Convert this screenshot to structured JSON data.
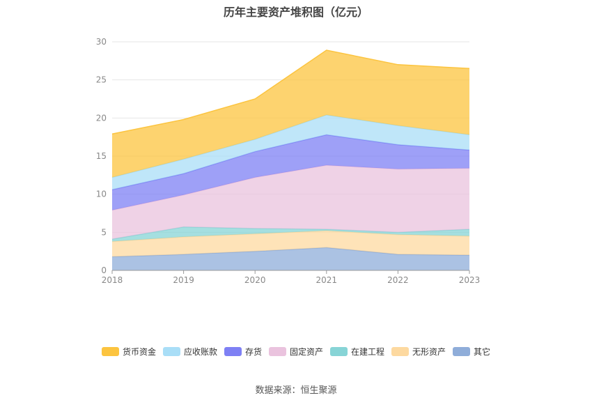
{
  "chart_data": {
    "type": "area",
    "stacked": true,
    "title": "历年主要资产堆积图（亿元）",
    "x": [
      "2018",
      "2019",
      "2020",
      "2021",
      "2022",
      "2023"
    ],
    "ylim": [
      0,
      30
    ],
    "yticks": [
      "0",
      "5",
      "10",
      "15",
      "20",
      "25",
      "30"
    ],
    "grid": true,
    "legend_position": "bottom",
    "series": [
      {
        "name": "其它",
        "color": "#8fadd9",
        "values": [
          1.8,
          2.1,
          2.5,
          3.0,
          2.1,
          2.0
        ]
      },
      {
        "name": "无形资产",
        "color": "#fdd9a0",
        "values": [
          2.0,
          2.3,
          2.3,
          2.2,
          2.6,
          2.5
        ]
      },
      {
        "name": "在建工程",
        "color": "#87d4d6",
        "values": [
          0.3,
          1.3,
          0.7,
          0.2,
          0.3,
          0.9
        ]
      },
      {
        "name": "固定资产",
        "color": "#eac3de",
        "values": [
          3.8,
          4.2,
          6.7,
          8.4,
          8.3,
          8.0
        ]
      },
      {
        "name": "存货",
        "color": "#7e80f4",
        "values": [
          2.7,
          2.8,
          3.4,
          4.0,
          3.2,
          2.4
        ]
      },
      {
        "name": "应收账款",
        "color": "#a9def7",
        "values": [
          1.6,
          1.9,
          1.6,
          2.6,
          2.5,
          2.0
        ]
      },
      {
        "name": "货币资金",
        "color": "#fcc43f",
        "values": [
          5.7,
          5.2,
          5.3,
          8.5,
          8.0,
          8.7
        ]
      }
    ]
  },
  "footer": {
    "source": "数据来源：恒生聚源"
  }
}
